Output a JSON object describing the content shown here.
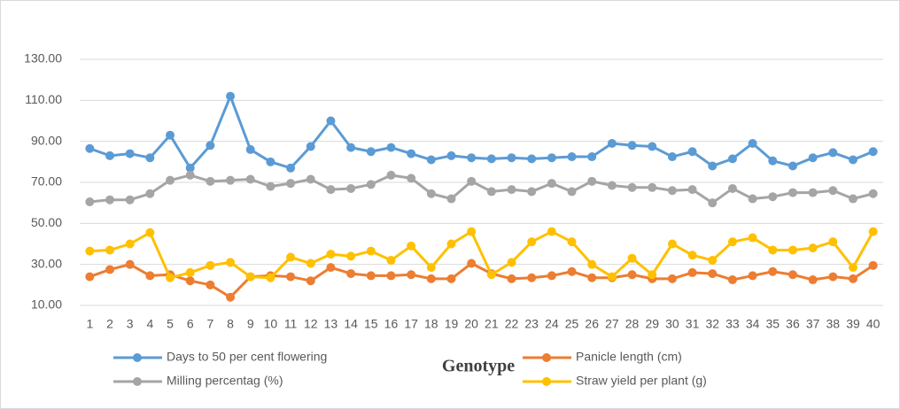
{
  "chart_data": {
    "type": "line",
    "x_label": "Genotype",
    "categories": [
      "1",
      "2",
      "3",
      "4",
      "5",
      "6",
      "7",
      "8",
      "9",
      "10",
      "11",
      "12",
      "13",
      "14",
      "15",
      "16",
      "17",
      "18",
      "19",
      "20",
      "21",
      "22",
      "23",
      "24",
      "25",
      "26",
      "27",
      "28",
      "29",
      "30",
      "31",
      "32",
      "33",
      "34",
      "35",
      "36",
      "37",
      "38",
      "39",
      "40"
    ],
    "series": [
      {
        "name": "Days to 50 per cent flowering",
        "color": "#5b9bd5",
        "values": [
          86.5,
          83,
          84,
          82,
          93,
          77,
          88,
          112,
          86,
          80,
          77,
          87.5,
          100,
          87,
          85,
          87,
          84,
          81,
          83,
          82,
          81.5,
          82,
          81.5,
          82,
          82.5,
          82.5,
          89,
          88,
          87.5,
          82.5,
          85,
          78,
          81.5,
          89,
          80.5,
          78,
          82,
          84.5,
          81,
          85
        ]
      },
      {
        "name": "Panicle length (cm)",
        "color": "#ed7d31",
        "values": [
          24,
          27.5,
          30,
          24.5,
          25,
          22,
          20,
          14,
          24,
          24.5,
          24,
          22,
          28.5,
          25.5,
          24.5,
          24.5,
          25,
          23,
          23,
          30.5,
          25.5,
          23,
          23.5,
          24.5,
          26.5,
          23.5,
          23.5,
          25,
          23,
          23,
          26,
          25.5,
          22.5,
          24.5,
          26.5,
          25,
          22.5,
          24,
          23,
          29.5
        ]
      },
      {
        "name": "Milling percentag (%)",
        "color": "#a5a5a5",
        "values": [
          60.5,
          61.5,
          61.5,
          64.5,
          71,
          73.5,
          70.5,
          71,
          71.5,
          68,
          69.5,
          71.5,
          66.5,
          67,
          69,
          73.5,
          72,
          64.5,
          62,
          70.5,
          65.5,
          66.5,
          65.5,
          69.5,
          65.5,
          70.5,
          68.5,
          67.5,
          67.5,
          66,
          66.5,
          60,
          67,
          62,
          63,
          65,
          65,
          66,
          62,
          64.5
        ]
      },
      {
        "name": "Straw yield per plant (g)",
        "color": "#ffc000",
        "values": [
          36.5,
          37,
          40,
          45.5,
          23.5,
          26,
          29.5,
          31,
          24,
          23.5,
          33.5,
          30.5,
          35,
          34,
          36.5,
          32,
          39,
          28.5,
          40,
          46,
          25,
          31,
          41,
          46,
          41,
          30,
          24,
          33,
          25,
          40,
          34.5,
          32,
          41,
          43,
          37,
          37,
          38,
          41,
          28.5,
          46
        ]
      }
    ],
    "ylim": [
      10,
      150
    ],
    "yticks": [
      {
        "value": 10,
        "label": "10.00"
      },
      {
        "value": 30,
        "label": "30.00"
      },
      {
        "value": 50,
        "label": "50.00"
      },
      {
        "value": 70,
        "label": "70.00"
      },
      {
        "value": 90,
        "label": "90.00"
      },
      {
        "value": 110,
        "label": "110.00"
      },
      {
        "value": 130,
        "label": "130.00"
      }
    ],
    "grid": true,
    "legend": "bottom"
  }
}
